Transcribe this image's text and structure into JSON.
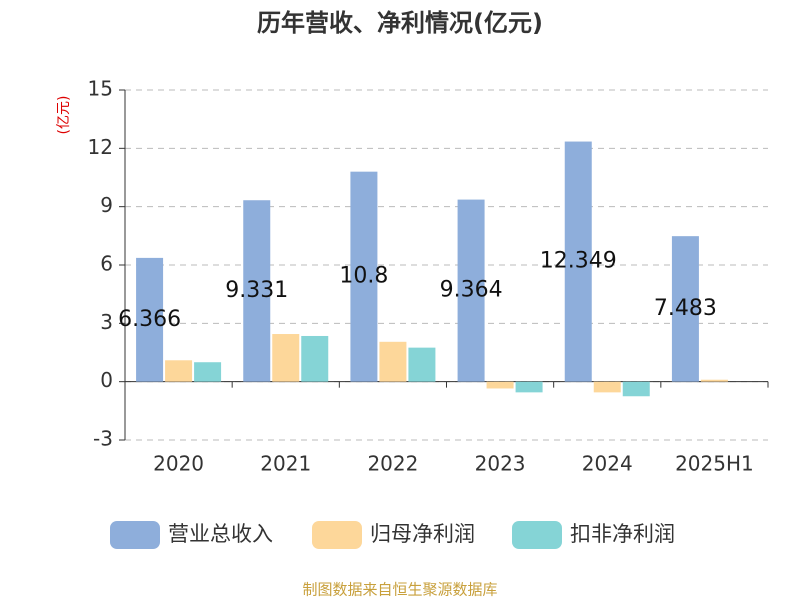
{
  "chart_data": {
    "type": "bar",
    "title": "历年营收、净利情况(亿元)",
    "y_label": "(亿元)",
    "source": "制图数据来自恒生聚源数据库",
    "categories": [
      "2020",
      "2021",
      "2022",
      "2023",
      "2024",
      "2025H1"
    ],
    "series": [
      {
        "name": "营业总收入",
        "color": "#8eaedb",
        "values": [
          6.366,
          9.331,
          10.8,
          9.364,
          12.349,
          7.483
        ]
      },
      {
        "name": "归母净利润",
        "color": "#fdd79a",
        "values": [
          1.1,
          2.45,
          2.05,
          -0.35,
          -0.55,
          0.1
        ]
      },
      {
        "name": "扣非净利润",
        "color": "#85d4d6",
        "values": [
          1.0,
          2.35,
          1.75,
          -0.55,
          -0.75,
          0
        ]
      }
    ],
    "ylim": [
      -3,
      15
    ],
    "yticks": [
      -3,
      0,
      3,
      6,
      9,
      12,
      15
    ],
    "grid": true,
    "legend": "bottom"
  }
}
